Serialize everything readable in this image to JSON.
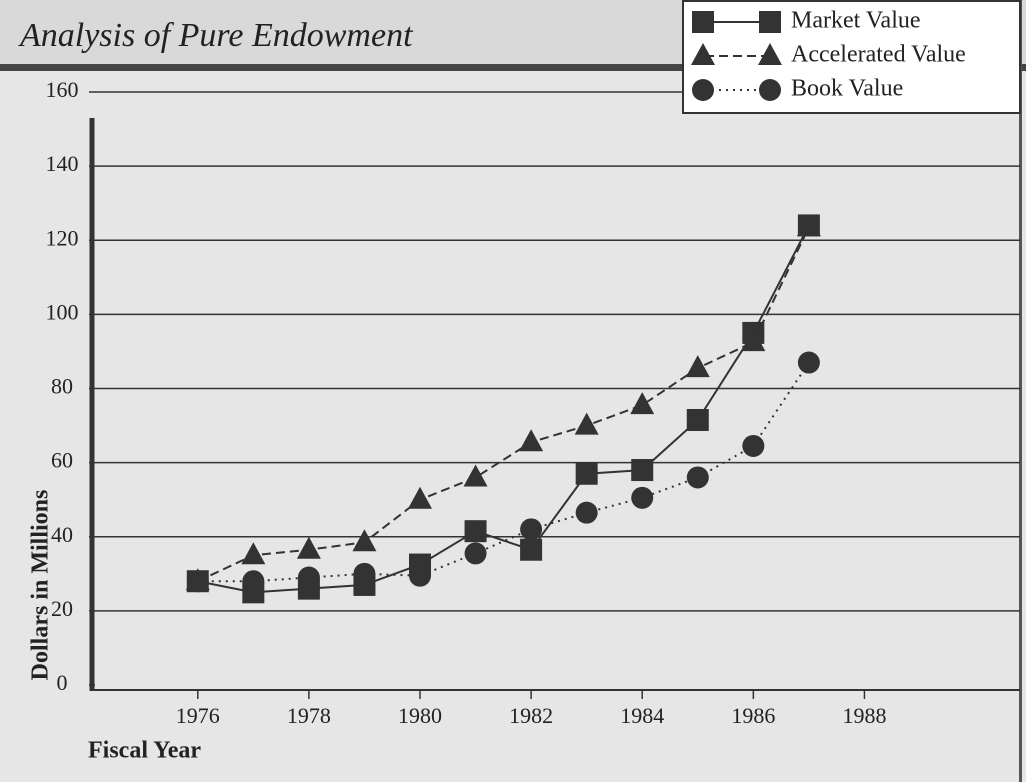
{
  "chart_data": {
    "type": "line",
    "title": "Analysis of Pure Endowment",
    "x_label": "Fiscal Year",
    "y_label": "Dollars in Millions",
    "x": [
      1976,
      1977,
      1978,
      1979,
      1980,
      1981,
      1982,
      1983,
      1984,
      1985,
      1986,
      1987
    ],
    "series": [
      {
        "name": "Market Value",
        "color": "#333333",
        "marker": "square",
        "linestyle": "solid",
        "values": [
          28,
          25,
          26,
          27,
          32.5,
          41.5,
          36.5,
          57,
          58,
          71.5,
          95,
          124
        ]
      },
      {
        "name": "Accelerated Value",
        "color": "#333333",
        "marker": "triangle",
        "linestyle": "dashed",
        "values": [
          28,
          35,
          36.5,
          38.5,
          50,
          56,
          65.5,
          70,
          75.5,
          85.5,
          92.5,
          123.5
        ]
      },
      {
        "name": "Book Value",
        "color": "#333333",
        "marker": "circle",
        "linestyle": "dotted",
        "values": [
          28,
          28,
          29,
          30,
          29.5,
          35.5,
          42,
          46.5,
          50.5,
          56,
          64.5,
          87
        ]
      }
    ],
    "xlim": [
      1974.15,
      1990.8
    ],
    "xticks": [
      1976,
      1978,
      1980,
      1982,
      1984,
      1986,
      1988
    ],
    "ylim": [
      0,
      160
    ],
    "yticks": [
      0,
      20,
      40,
      60,
      80,
      100,
      120,
      140,
      160
    ],
    "grid": true,
    "legend": "top-right"
  }
}
